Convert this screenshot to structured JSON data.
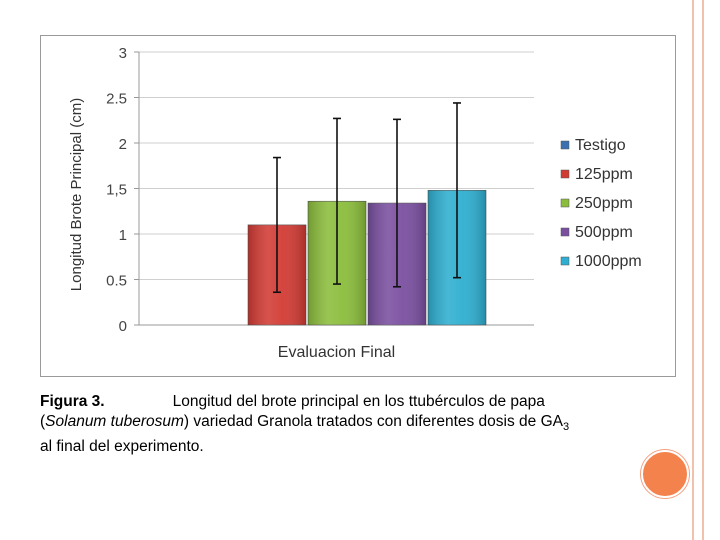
{
  "chart_data": {
    "type": "bar",
    "xlabel": "Evaluacion Final",
    "ylabel": "Longitud Brote Principal  (cm)",
    "ylim": [
      0,
      3
    ],
    "yticks": [
      "0",
      "0.5",
      "1",
      "1,5",
      "2",
      "2.5",
      "3"
    ],
    "grid": true,
    "legend_position": "right",
    "categories": [
      "Evaluacion Final"
    ],
    "series": [
      {
        "name": "Testigo",
        "value": 0,
        "err_low": null,
        "err_high": null,
        "color": "#3a6fb0"
      },
      {
        "name": "125ppm",
        "value": 1.1,
        "err_low": 0.36,
        "err_high": 1.84,
        "color": "#d23b34"
      },
      {
        "name": "250ppm",
        "value": 1.36,
        "err_low": 0.45,
        "err_high": 2.27,
        "color": "#8bbd3c"
      },
      {
        "name": "500ppm",
        "value": 1.34,
        "err_low": 0.42,
        "err_high": 2.26,
        "color": "#7a4fa0"
      },
      {
        "name": "1000ppm",
        "value": 1.48,
        "err_low": 0.52,
        "err_high": 2.44,
        "color": "#2eaed0"
      }
    ]
  },
  "caption": {
    "figure_label": "Figura 3.",
    "line1": "Longitud del brote principal en los ttubérculos de papa",
    "line2_open": "(",
    "species": "Solanum tuberosum",
    "line2_rest": ") variedad Granola tratados con diferentes dosis de GA",
    "subscript": "3",
    "line3": "al final del experimento."
  }
}
